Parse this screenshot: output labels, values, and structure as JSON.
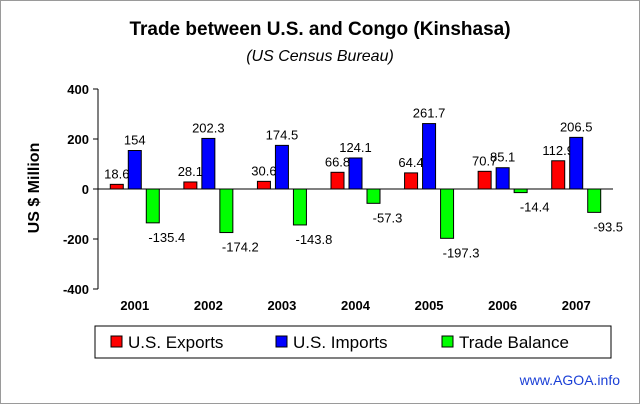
{
  "colors": {
    "exports": "#ff0000",
    "imports": "#0000ff",
    "balance": "#00ff00",
    "watermark": "#1a3fd6"
  },
  "source_link": "www.AGOA.info",
  "chart_data": {
    "type": "bar",
    "title": "Trade between U.S. and Congo (Kinshasa)",
    "subtitle": "(US Census Bureau)",
    "xlabel": "",
    "ylabel": "US $ Million",
    "ylim": [
      -400,
      400
    ],
    "yticks": [
      "400",
      "200",
      "0",
      "-200",
      "-400"
    ],
    "grid": false,
    "legend_position": "bottom",
    "categories": [
      "2001",
      "2002",
      "2003",
      "2004",
      "2005",
      "2006",
      "2007"
    ],
    "series": [
      {
        "name": "U.S. Exports",
        "values": [
          18.6,
          28.1,
          30.6,
          66.8,
          64.4,
          70.7,
          112.9
        ],
        "labels": [
          "18.6",
          "28.1",
          "30.6",
          "66.8",
          "64.4",
          "70.7",
          "112.9"
        ]
      },
      {
        "name": "U.S. Imports",
        "values": [
          154,
          202.3,
          174.5,
          124.1,
          261.7,
          85.1,
          206.5
        ],
        "labels": [
          "154",
          "202.3",
          "174.5",
          "124.1",
          "261.7",
          "85.1",
          "206.5"
        ]
      },
      {
        "name": "Trade Balance",
        "values": [
          -135.4,
          -174.2,
          -143.8,
          -57.3,
          -197.3,
          -14.4,
          -93.5
        ],
        "labels": [
          "-135.4",
          "-174.2",
          "-143.8",
          "-57.3",
          "-197.3",
          "-14.4",
          "-93.5"
        ]
      }
    ]
  }
}
